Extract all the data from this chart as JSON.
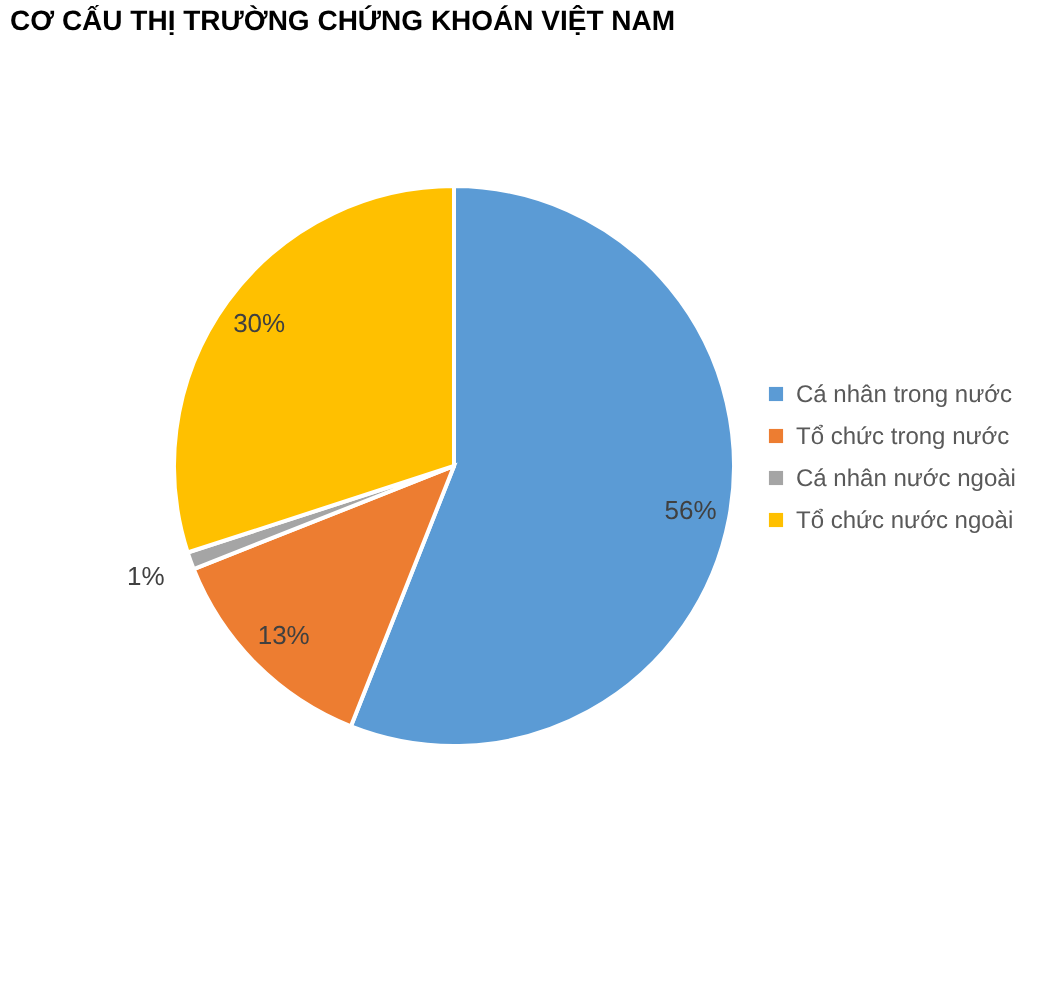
{
  "chart_data": {
    "type": "pie",
    "title": "CƠ CẤU THỊ TRƯỜNG CHỨNG KHOÁN VIỆT NAM",
    "categories": [
      "Cá nhân trong nước",
      "Tổ chức trong nước",
      "Cá nhân nước ngoài",
      "Tổ chức nước ngoài"
    ],
    "values": [
      56,
      13,
      1,
      30
    ],
    "colors": [
      "#5b9bd5",
      "#ed7d31",
      "#a5a5a5",
      "#ffc000"
    ],
    "value_labels": [
      "56%",
      "13%",
      "1%",
      "30%"
    ],
    "legend": "right"
  }
}
